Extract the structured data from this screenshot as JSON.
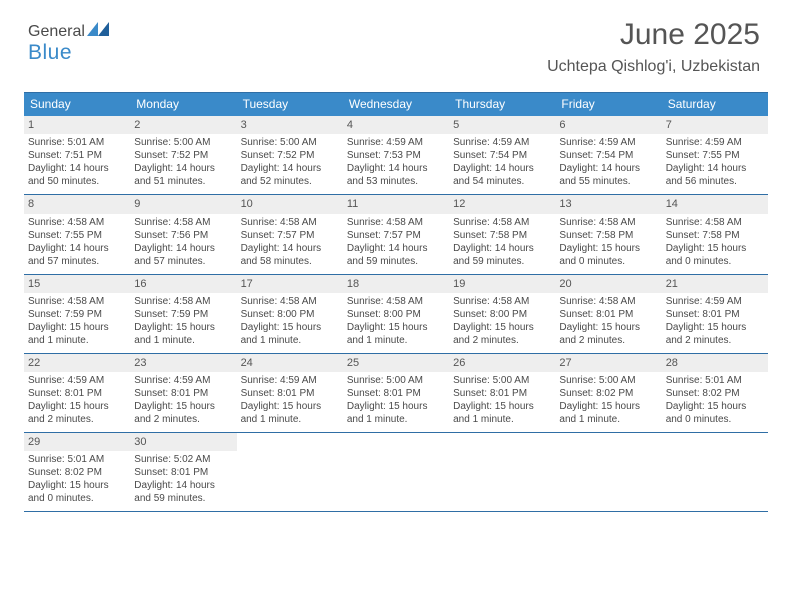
{
  "brand": {
    "part1": "General",
    "part2": "Blue",
    "accent": "#3a8ac9"
  },
  "title": "June 2025",
  "location": "Uchtepa Qishlog'i, Uzbekistan",
  "style": {
    "header_bg": "#3a8ac9",
    "header_text": "#ffffff",
    "border_color": "#2f6ea5",
    "daynum_bg": "#eeeeee",
    "body_text": "#4a4a4a",
    "font_family": "Arial",
    "title_fontsize": 30,
    "location_fontsize": 16,
    "dow_fontsize": 12,
    "cell_fontsize": 10
  },
  "dow": [
    "Sunday",
    "Monday",
    "Tuesday",
    "Wednesday",
    "Thursday",
    "Friday",
    "Saturday"
  ],
  "weeks": [
    [
      {
        "n": "1",
        "sr": "Sunrise: 5:01 AM",
        "ss": "Sunset: 7:51 PM",
        "d1": "Daylight: 14 hours",
        "d2": "and 50 minutes."
      },
      {
        "n": "2",
        "sr": "Sunrise: 5:00 AM",
        "ss": "Sunset: 7:52 PM",
        "d1": "Daylight: 14 hours",
        "d2": "and 51 minutes."
      },
      {
        "n": "3",
        "sr": "Sunrise: 5:00 AM",
        "ss": "Sunset: 7:52 PM",
        "d1": "Daylight: 14 hours",
        "d2": "and 52 minutes."
      },
      {
        "n": "4",
        "sr": "Sunrise: 4:59 AM",
        "ss": "Sunset: 7:53 PM",
        "d1": "Daylight: 14 hours",
        "d2": "and 53 minutes."
      },
      {
        "n": "5",
        "sr": "Sunrise: 4:59 AM",
        "ss": "Sunset: 7:54 PM",
        "d1": "Daylight: 14 hours",
        "d2": "and 54 minutes."
      },
      {
        "n": "6",
        "sr": "Sunrise: 4:59 AM",
        "ss": "Sunset: 7:54 PM",
        "d1": "Daylight: 14 hours",
        "d2": "and 55 minutes."
      },
      {
        "n": "7",
        "sr": "Sunrise: 4:59 AM",
        "ss": "Sunset: 7:55 PM",
        "d1": "Daylight: 14 hours",
        "d2": "and 56 minutes."
      }
    ],
    [
      {
        "n": "8",
        "sr": "Sunrise: 4:58 AM",
        "ss": "Sunset: 7:55 PM",
        "d1": "Daylight: 14 hours",
        "d2": "and 57 minutes."
      },
      {
        "n": "9",
        "sr": "Sunrise: 4:58 AM",
        "ss": "Sunset: 7:56 PM",
        "d1": "Daylight: 14 hours",
        "d2": "and 57 minutes."
      },
      {
        "n": "10",
        "sr": "Sunrise: 4:58 AM",
        "ss": "Sunset: 7:57 PM",
        "d1": "Daylight: 14 hours",
        "d2": "and 58 minutes."
      },
      {
        "n": "11",
        "sr": "Sunrise: 4:58 AM",
        "ss": "Sunset: 7:57 PM",
        "d1": "Daylight: 14 hours",
        "d2": "and 59 minutes."
      },
      {
        "n": "12",
        "sr": "Sunrise: 4:58 AM",
        "ss": "Sunset: 7:58 PM",
        "d1": "Daylight: 14 hours",
        "d2": "and 59 minutes."
      },
      {
        "n": "13",
        "sr": "Sunrise: 4:58 AM",
        "ss": "Sunset: 7:58 PM",
        "d1": "Daylight: 15 hours",
        "d2": "and 0 minutes."
      },
      {
        "n": "14",
        "sr": "Sunrise: 4:58 AM",
        "ss": "Sunset: 7:58 PM",
        "d1": "Daylight: 15 hours",
        "d2": "and 0 minutes."
      }
    ],
    [
      {
        "n": "15",
        "sr": "Sunrise: 4:58 AM",
        "ss": "Sunset: 7:59 PM",
        "d1": "Daylight: 15 hours",
        "d2": "and 1 minute."
      },
      {
        "n": "16",
        "sr": "Sunrise: 4:58 AM",
        "ss": "Sunset: 7:59 PM",
        "d1": "Daylight: 15 hours",
        "d2": "and 1 minute."
      },
      {
        "n": "17",
        "sr": "Sunrise: 4:58 AM",
        "ss": "Sunset: 8:00 PM",
        "d1": "Daylight: 15 hours",
        "d2": "and 1 minute."
      },
      {
        "n": "18",
        "sr": "Sunrise: 4:58 AM",
        "ss": "Sunset: 8:00 PM",
        "d1": "Daylight: 15 hours",
        "d2": "and 1 minute."
      },
      {
        "n": "19",
        "sr": "Sunrise: 4:58 AM",
        "ss": "Sunset: 8:00 PM",
        "d1": "Daylight: 15 hours",
        "d2": "and 2 minutes."
      },
      {
        "n": "20",
        "sr": "Sunrise: 4:58 AM",
        "ss": "Sunset: 8:01 PM",
        "d1": "Daylight: 15 hours",
        "d2": "and 2 minutes."
      },
      {
        "n": "21",
        "sr": "Sunrise: 4:59 AM",
        "ss": "Sunset: 8:01 PM",
        "d1": "Daylight: 15 hours",
        "d2": "and 2 minutes."
      }
    ],
    [
      {
        "n": "22",
        "sr": "Sunrise: 4:59 AM",
        "ss": "Sunset: 8:01 PM",
        "d1": "Daylight: 15 hours",
        "d2": "and 2 minutes."
      },
      {
        "n": "23",
        "sr": "Sunrise: 4:59 AM",
        "ss": "Sunset: 8:01 PM",
        "d1": "Daylight: 15 hours",
        "d2": "and 2 minutes."
      },
      {
        "n": "24",
        "sr": "Sunrise: 4:59 AM",
        "ss": "Sunset: 8:01 PM",
        "d1": "Daylight: 15 hours",
        "d2": "and 1 minute."
      },
      {
        "n": "25",
        "sr": "Sunrise: 5:00 AM",
        "ss": "Sunset: 8:01 PM",
        "d1": "Daylight: 15 hours",
        "d2": "and 1 minute."
      },
      {
        "n": "26",
        "sr": "Sunrise: 5:00 AM",
        "ss": "Sunset: 8:01 PM",
        "d1": "Daylight: 15 hours",
        "d2": "and 1 minute."
      },
      {
        "n": "27",
        "sr": "Sunrise: 5:00 AM",
        "ss": "Sunset: 8:02 PM",
        "d1": "Daylight: 15 hours",
        "d2": "and 1 minute."
      },
      {
        "n": "28",
        "sr": "Sunrise: 5:01 AM",
        "ss": "Sunset: 8:02 PM",
        "d1": "Daylight: 15 hours",
        "d2": "and 0 minutes."
      }
    ],
    [
      {
        "n": "29",
        "sr": "Sunrise: 5:01 AM",
        "ss": "Sunset: 8:02 PM",
        "d1": "Daylight: 15 hours",
        "d2": "and 0 minutes."
      },
      {
        "n": "30",
        "sr": "Sunrise: 5:02 AM",
        "ss": "Sunset: 8:01 PM",
        "d1": "Daylight: 14 hours",
        "d2": "and 59 minutes."
      },
      {
        "empty": true
      },
      {
        "empty": true
      },
      {
        "empty": true
      },
      {
        "empty": true
      },
      {
        "empty": true
      }
    ]
  ]
}
